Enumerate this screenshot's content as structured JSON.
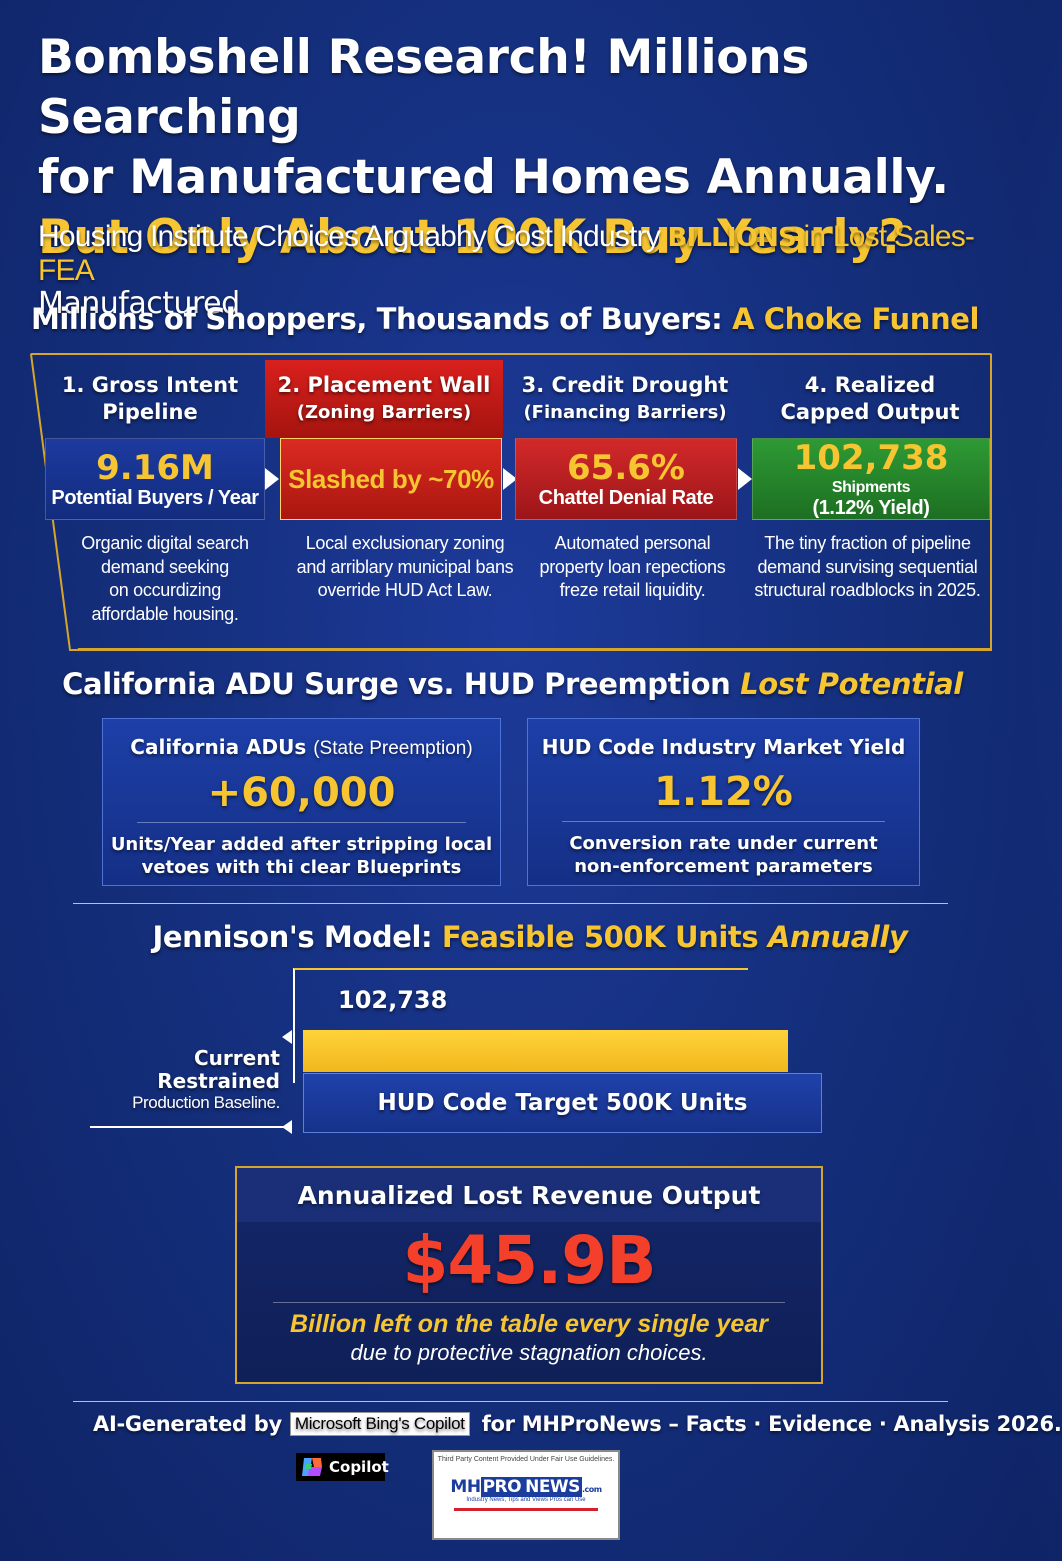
{
  "headline": {
    "line1": "Bombshell Research! Millions Searching",
    "line2": "for Manufactured Homes Annually.",
    "line3_gold": "But Only About 100K Buy Yearly?",
    "line3_tail": "Manufactured",
    "sub_start": "Housing Institute Choices Arguabhy Cost Industry",
    "sub_billions": "BILLIONS",
    "sub_end": "in Lost Sales-FEA"
  },
  "funnel": {
    "title_white": "Millions of Shoppers, Thousands of Buyers:",
    "title_gold": "A Choke Funnel",
    "steps": [
      {
        "head": "1. Gross Intent",
        "head2": "Pipeline",
        "value": "9.16M",
        "label": "Potential Buyers / Year",
        "desc": [
          "Organic digital search",
          "demand seeking",
          "on occurdizing",
          "affordable housing."
        ]
      },
      {
        "head": "2. Placement Wall",
        "head2": "(Zoning Barriers)",
        "value": "Slashed by ~70%",
        "label": "",
        "desc": [
          "Local exclusionary zoning",
          "and arriblary municipal bans",
          "override HUD Act Law."
        ]
      },
      {
        "head": "3. Credit Drought",
        "head2": "(Financing Barriers)",
        "value": "65.6%",
        "label": "Chattel Denial Rate",
        "desc": [
          "Automated personal",
          "property loan repections",
          "freze retail liquidity."
        ]
      },
      {
        "head": "4. Realized",
        "head2": "Capped Output",
        "value": "102,738",
        "value_suffix": "Shipments",
        "label": "(1.12% Yield)",
        "desc": [
          "The tiny fraction of pipeline",
          "demand survising sequential",
          "structural roadblocks in 2025."
        ]
      }
    ]
  },
  "adu": {
    "title_white": "California ADU Surge vs. HUD Preemption",
    "title_gold": "Lost Potential",
    "left": {
      "title": "California ADUs",
      "title_paren": "(State Preemption)",
      "value": "+60,000",
      "desc1": "Units/Year added after stripping local",
      "desc2": "vetoes with thi clear Blueprints"
    },
    "right": {
      "title": "HUD Code Industry Market Yield",
      "value": "1.12%",
      "desc1": "Conversion rate under current",
      "desc2": "non-enforcement parameters"
    }
  },
  "model": {
    "title_white": "Jennison's Model:",
    "title_gold": "Feasible 500K Units",
    "title_gold_italic": "Annually",
    "bar_value": "102,738",
    "baseline1": "Current",
    "baseline2": "Restrained",
    "baseline3": "Production Baseline.",
    "target_label": "HUD Code Target 500K Units"
  },
  "revenue": {
    "title": "Annualized Lost Revenue Output",
    "value": "$45.9B",
    "line1": "Billion left on the table every single year",
    "line2": "due to protective stagnation choices."
  },
  "footer": {
    "prefix": "AI-Generated by",
    "ms_label": "Microsoft Bing's Copilot",
    "suffix": "for MHProNews – Facts · Evidence · Analysis 2026.",
    "copilot_label": "Copilot",
    "logo_fair_use": "Third Party Content Provided Under Fair Use Guidelines.",
    "logo_mh": "MH",
    "logo_pro": "PRO",
    "logo_news": "NEWS",
    "logo_com": ".com",
    "logo_tag": "Industry News, Tips and Views Pros can Use"
  },
  "colors": {
    "gold": "#f7c531",
    "red": "#d9201d",
    "green": "#2e9a34",
    "navy": "#15307f",
    "revenue_red": "#f4402a"
  }
}
